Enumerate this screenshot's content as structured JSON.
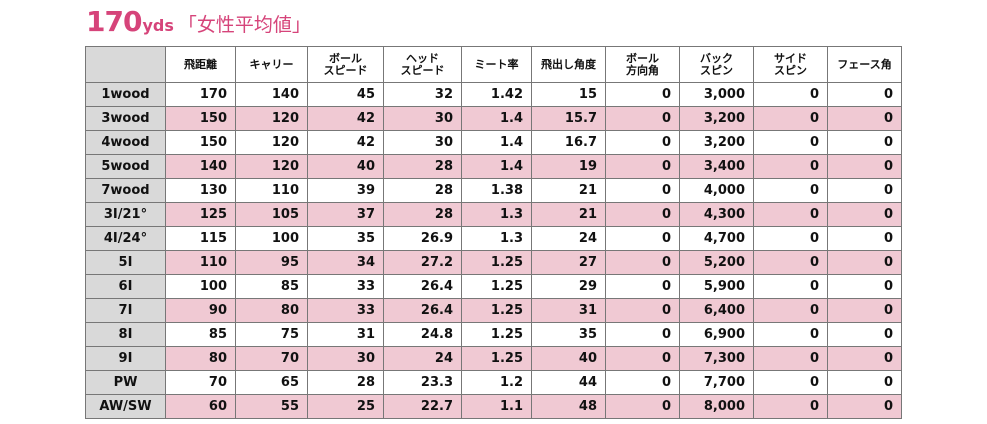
{
  "title": {
    "number": "170",
    "unit": "yds",
    "label": "「女性平均値」"
  },
  "colors": {
    "title": "#d6447a",
    "row_highlight": "#f0c9d3",
    "header_gray": "#d9d9d9"
  },
  "table": {
    "headers": [
      "",
      "飛距離",
      "キャリー",
      "ボール\nスピード",
      "ヘッド\nスピード",
      "ミート率",
      "飛出し角度",
      "ボール\n方向角",
      "バック\nスピン",
      "サイド\nスピン",
      "フェース角"
    ],
    "rows": [
      {
        "club": "1wood",
        "values": [
          "170",
          "140",
          "45",
          "32",
          "1.42",
          "15",
          "0",
          "3,000",
          "0",
          "0"
        ],
        "highlight": false
      },
      {
        "club": "3wood",
        "values": [
          "150",
          "120",
          "42",
          "30",
          "1.4",
          "15.7",
          "0",
          "3,200",
          "0",
          "0"
        ],
        "highlight": true
      },
      {
        "club": "4wood",
        "values": [
          "150",
          "120",
          "42",
          "30",
          "1.4",
          "16.7",
          "0",
          "3,200",
          "0",
          "0"
        ],
        "highlight": false
      },
      {
        "club": "5wood",
        "values": [
          "140",
          "120",
          "40",
          "28",
          "1.4",
          "19",
          "0",
          "3,400",
          "0",
          "0"
        ],
        "highlight": true
      },
      {
        "club": "7wood",
        "values": [
          "130",
          "110",
          "39",
          "28",
          "1.38",
          "21",
          "0",
          "4,000",
          "0",
          "0"
        ],
        "highlight": false
      },
      {
        "club": "3I/21°",
        "values": [
          "125",
          "105",
          "37",
          "28",
          "1.3",
          "21",
          "0",
          "4,300",
          "0",
          "0"
        ],
        "highlight": true
      },
      {
        "club": "4I/24°",
        "values": [
          "115",
          "100",
          "35",
          "26.9",
          "1.3",
          "24",
          "0",
          "4,700",
          "0",
          "0"
        ],
        "highlight": false
      },
      {
        "club": "5I",
        "values": [
          "110",
          "95",
          "34",
          "27.2",
          "1.25",
          "27",
          "0",
          "5,200",
          "0",
          "0"
        ],
        "highlight": true
      },
      {
        "club": "6I",
        "values": [
          "100",
          "85",
          "33",
          "26.4",
          "1.25",
          "29",
          "0",
          "5,900",
          "0",
          "0"
        ],
        "highlight": false
      },
      {
        "club": "7I",
        "values": [
          "90",
          "80",
          "33",
          "26.4",
          "1.25",
          "31",
          "0",
          "6,400",
          "0",
          "0"
        ],
        "highlight": true
      },
      {
        "club": "8I",
        "values": [
          "85",
          "75",
          "31",
          "24.8",
          "1.25",
          "35",
          "0",
          "6,900",
          "0",
          "0"
        ],
        "highlight": false
      },
      {
        "club": "9I",
        "values": [
          "80",
          "70",
          "30",
          "24",
          "1.25",
          "40",
          "0",
          "7,300",
          "0",
          "0"
        ],
        "highlight": true
      },
      {
        "club": "PW",
        "values": [
          "70",
          "65",
          "28",
          "23.3",
          "1.2",
          "44",
          "0",
          "7,700",
          "0",
          "0"
        ],
        "highlight": false
      },
      {
        "club": "AW/SW",
        "values": [
          "60",
          "55",
          "25",
          "22.7",
          "1.1",
          "48",
          "0",
          "8,000",
          "0",
          "0"
        ],
        "highlight": true
      }
    ]
  }
}
